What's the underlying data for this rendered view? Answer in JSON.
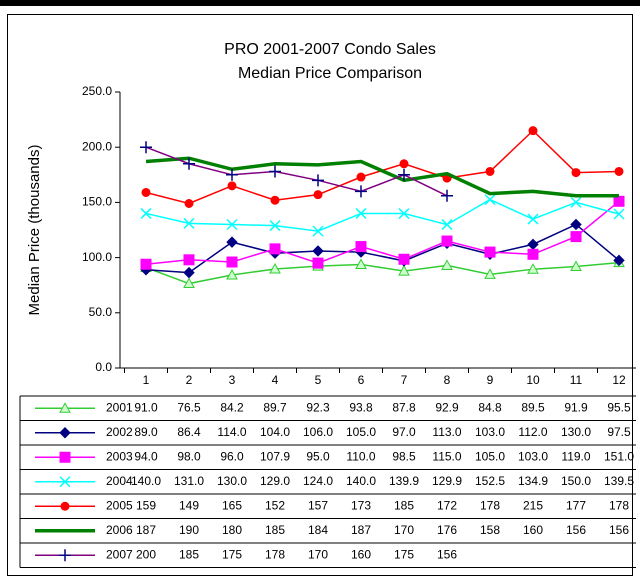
{
  "chart_data": {
    "type": "line",
    "title": "PRO 2001-2007 Condo Sales",
    "subtitle": "Median Price Comparison",
    "y_label": "Median Price (thousands)",
    "categories": [
      1,
      2,
      3,
      4,
      5,
      6,
      7,
      8,
      9,
      10,
      11,
      12
    ],
    "ylim": [
      0,
      250
    ],
    "yticks": [
      {
        "value": 0,
        "label": "0.0"
      },
      {
        "value": 50,
        "label": "50.0"
      },
      {
        "value": 100,
        "label": "100.0"
      },
      {
        "value": 150,
        "label": "150.0"
      },
      {
        "value": 200,
        "label": "200.0"
      },
      {
        "value": 250,
        "label": "250.0"
      }
    ],
    "series": [
      {
        "name": "2001",
        "color": "#33cc33",
        "marker": "triangle",
        "marker_fill": "#ccffcc",
        "line_width": 1.5,
        "values": [
          91.0,
          76.5,
          84.2,
          89.7,
          92.3,
          93.8,
          87.8,
          92.9,
          84.8,
          89.5,
          91.9,
          95.5
        ],
        "value_labels": [
          "91.0",
          "76.5",
          "84.2",
          "89.7",
          "92.3",
          "93.8",
          "87.8",
          "92.9",
          "84.8",
          "89.5",
          "91.9",
          "95.5"
        ]
      },
      {
        "name": "2002",
        "color": "#000080",
        "marker": "diamond",
        "marker_fill": "#000080",
        "line_width": 1.5,
        "values": [
          89.0,
          86.4,
          114.0,
          104.0,
          106.0,
          105.0,
          97.0,
          113.0,
          103.0,
          112.0,
          130.0,
          97.5
        ],
        "value_labels": [
          "89.0",
          "86.4",
          "114.0",
          "104.0",
          "106.0",
          "105.0",
          "97.0",
          "113.0",
          "103.0",
          "112.0",
          "130.0",
          "97.5"
        ]
      },
      {
        "name": "2003",
        "color": "#ff00ff",
        "marker": "square",
        "marker_fill": "#ff00ff",
        "line_width": 1.5,
        "values": [
          94.0,
          98.0,
          96.0,
          107.9,
          95.0,
          110.0,
          98.5,
          115.0,
          105.0,
          103.0,
          119.0,
          151.0
        ],
        "value_labels": [
          "94.0",
          "98.0",
          "96.0",
          "107.9",
          "95.0",
          "110.0",
          "98.5",
          "115.0",
          "105.0",
          "103.0",
          "119.0",
          "151.0"
        ]
      },
      {
        "name": "2004",
        "color": "#00ffff",
        "marker": "x",
        "marker_fill": "none",
        "line_width": 1.5,
        "values": [
          140.0,
          131.0,
          130.0,
          129.0,
          124.0,
          140.0,
          139.9,
          129.9,
          152.5,
          134.9,
          150.0,
          139.5
        ],
        "value_labels": [
          "140.0",
          "131.0",
          "130.0",
          "129.0",
          "124.0",
          "140.0",
          "139.9",
          "129.9",
          "152.5",
          "134.9",
          "150.0",
          "139.5"
        ]
      },
      {
        "name": "2005",
        "color": "#ff0000",
        "marker": "circle",
        "marker_fill": "#ff0000",
        "line_width": 1.5,
        "values": [
          159,
          149,
          165,
          152,
          157,
          173,
          185,
          172,
          178,
          215,
          177,
          178
        ]
      },
      {
        "name": "2006",
        "color": "#008000",
        "marker": "none",
        "marker_fill": "none",
        "line_width": 3.5,
        "values": [
          187,
          190,
          180,
          185,
          184,
          187,
          170,
          176,
          158,
          160,
          156,
          156
        ]
      },
      {
        "name": "2007",
        "color": "#800080",
        "marker": "plus",
        "marker_fill": "#000080",
        "line_width": 1.5,
        "values": [
          200,
          185,
          175,
          178,
          170,
          160,
          175,
          156,
          null,
          null,
          null,
          null
        ]
      }
    ]
  }
}
